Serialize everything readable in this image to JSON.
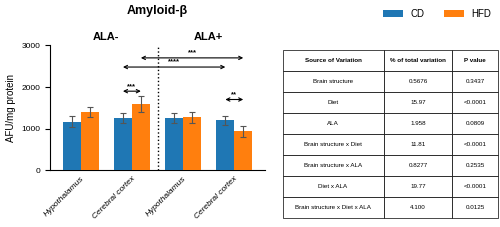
{
  "chart_data": {
    "type": "bar",
    "title": "Amyloid-β",
    "y_label": "AFU/mg protein",
    "categories": [
      "Hypothalamus",
      "Cerebral cortex",
      "Hypothalamus",
      "Cerebral cortex"
    ],
    "category_groups": [
      {
        "label": "ALA-",
        "size": 2
      },
      {
        "label": "ALA+",
        "size": 2
      }
    ],
    "series": [
      {
        "name": "CD",
        "values": [
          1170,
          1250,
          1265,
          1200
        ],
        "errors": [
          130,
          120,
          120,
          110
        ]
      },
      {
        "name": "HFD",
        "values": [
          1390,
          1590,
          1270,
          940
        ],
        "errors": [
          120,
          200,
          130,
          130
        ]
      }
    ],
    "ylim": [
      0,
      3000
    ],
    "yticks": [
      0,
      1000,
      2000,
      3000
    ],
    "legend": "upper right",
    "annotations": [
      {
        "text": "***",
        "y": 2700,
        "from": {
          "category": 1,
          "series": "HFD"
        },
        "to": {
          "category": 3,
          "series": "HFD"
        }
      },
      {
        "text": "****",
        "y": 2480,
        "from": {
          "category": 1,
          "series": "CD"
        },
        "to": {
          "category": 3,
          "series": "CD"
        }
      },
      {
        "text": "***",
        "y": 1900,
        "from": {
          "category": 1,
          "series": "CD"
        },
        "to": {
          "category": 1,
          "series": "HFD"
        }
      },
      {
        "text": "**",
        "y": 1700,
        "from": {
          "category": 3,
          "series": "CD"
        },
        "to": {
          "category": 3,
          "series": "HFD"
        }
      }
    ],
    "table": {
      "headers": [
        "Source of Variation",
        "% of total variation",
        "P value"
      ],
      "rows": [
        [
          "Brain structure",
          "0.5676",
          "0.3437"
        ],
        [
          "Diet",
          "15.97",
          "<0.0001"
        ],
        [
          "ALA",
          "1.958",
          "0.0809"
        ],
        [
          "Brain structure x Diet",
          "11.81",
          "<0.0001"
        ],
        [
          "Brain structure x ALA",
          "0.8277",
          "0.2535"
        ],
        [
          "Diet x ALA",
          "19.77",
          "<0.0001"
        ],
        [
          "Brain structure x Diet x ALA",
          "4.100",
          "0.0125"
        ]
      ]
    }
  }
}
